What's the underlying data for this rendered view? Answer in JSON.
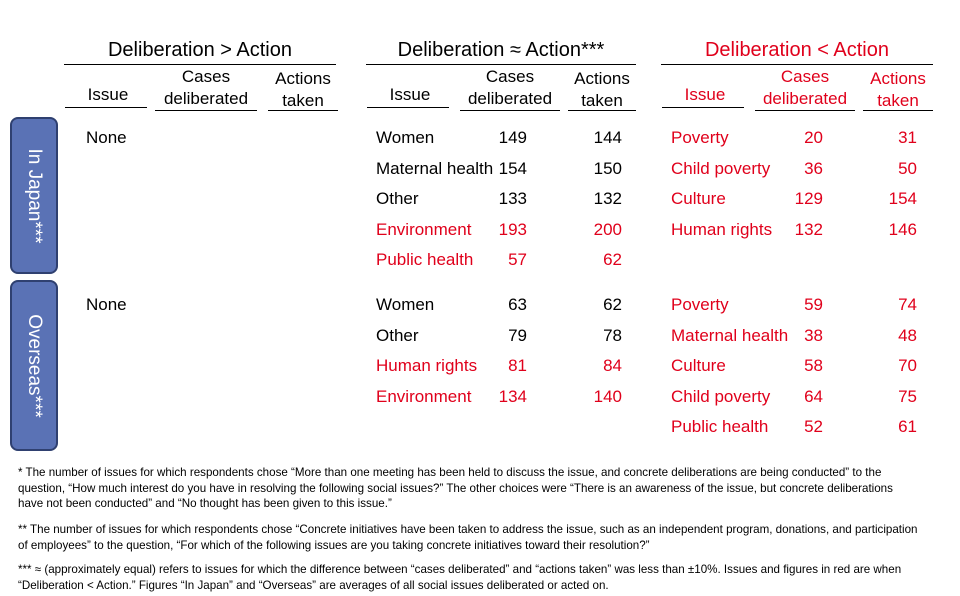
{
  "groups": {
    "g1": "Deliberation > Action",
    "g2": "Deliberation ≈ Action***",
    "g3": "Deliberation < Action"
  },
  "colors": {
    "accent_red": "#e0001b",
    "side_fill": "#5a72b5",
    "side_border": "#2f4070"
  },
  "columns": {
    "issue": "Issue",
    "cases": "Cases\ndeliberated",
    "actions": "Actions\ntaken"
  },
  "sections": {
    "japan": {
      "label": "In Japan***"
    },
    "overseas": {
      "label": "Overseas***"
    }
  },
  "japan": {
    "g1": [
      {
        "issue": "None"
      }
    ],
    "g2": [
      {
        "issue": "Women",
        "cases": "149",
        "actions": "144",
        "red": false
      },
      {
        "issue": "Maternal health",
        "cases": "154",
        "actions": "150",
        "red": false
      },
      {
        "issue": "Other",
        "cases": "133",
        "actions": "132",
        "red": false
      },
      {
        "issue": "Environment",
        "cases": "193",
        "actions": "200",
        "red": true
      },
      {
        "issue": "Public health",
        "cases": "57",
        "actions": "62",
        "red": true
      }
    ],
    "g3": [
      {
        "issue": "Poverty",
        "cases": "20",
        "actions": "31",
        "red": true
      },
      {
        "issue": "Child poverty",
        "cases": "36",
        "actions": "50",
        "red": true
      },
      {
        "issue": "Culture",
        "cases": "129",
        "actions": "154",
        "red": true
      },
      {
        "issue": "Human rights",
        "cases": "132",
        "actions": "146",
        "red": true
      }
    ]
  },
  "overseas": {
    "g1": [
      {
        "issue": "None"
      }
    ],
    "g2": [
      {
        "issue": "Women",
        "cases": "63",
        "actions": "62",
        "red": false
      },
      {
        "issue": "Other",
        "cases": "79",
        "actions": "78",
        "red": false
      },
      {
        "issue": "Human rights",
        "cases": "81",
        "actions": "84",
        "red": true
      },
      {
        "issue": "Environment",
        "cases": "134",
        "actions": "140",
        "red": true
      }
    ],
    "g3": [
      {
        "issue": "Poverty",
        "cases": "59",
        "actions": "74",
        "red": true
      },
      {
        "issue": "Maternal health",
        "cases": "38",
        "actions": "48",
        "red": true
      },
      {
        "issue": "Culture",
        "cases": "58",
        "actions": "70",
        "red": true
      },
      {
        "issue": "Child poverty",
        "cases": "64",
        "actions": "75",
        "red": true
      },
      {
        "issue": "Public health",
        "cases": "52",
        "actions": "61",
        "red": true
      }
    ]
  },
  "notes": {
    "n1": "* The number of issues for which respondents chose “More than one meeting has been held to discuss the issue, and concrete deliberations are being conducted” to the question, “How much interest do you have in resolving the following social issues?” The other choices were “There is an awareness of the issue, but concrete deliberations have not been conducted” and “No thought has been given to this issue.”",
    "n2": "** The number of issues for which respondents chose “Concrete initiatives have been taken to address the issue, such as an independent program, donations, and participation of employees” to the question, “For which of the following issues are you taking concrete initiatives toward their resolution?”",
    "n3": "*** ≈ (approximately equal) refers to issues for which the difference between “cases deliberated” and “actions taken” was less than ±10%. Issues and figures in red are when “Deliberation < Action.” Figures “In Japan” and “Overseas” are averages of all social issues deliberated or acted on."
  }
}
